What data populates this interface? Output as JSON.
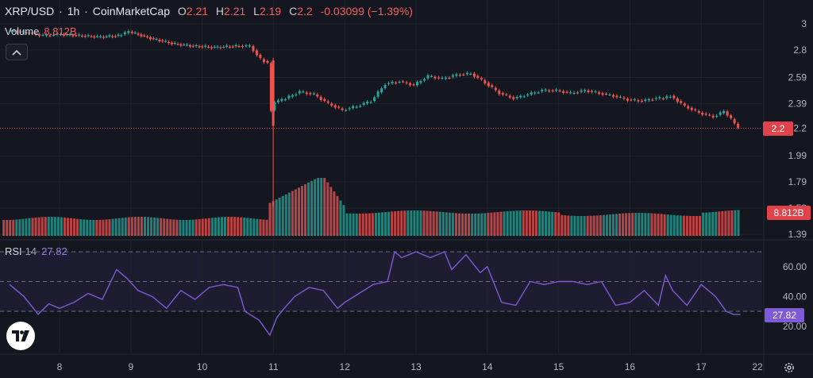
{
  "header": {
    "symbol": "XRP/USD",
    "interval": "1h",
    "source": "CoinMarketCap",
    "open_key": "O",
    "open": "2.21",
    "high_key": "H",
    "high": "2.21",
    "low_key": "L",
    "low": "2.19",
    "close_key": "C",
    "close": "2.2",
    "change": "-0.03099 (−1.39%)"
  },
  "volume": {
    "label": "Volume",
    "value": "8.812B"
  },
  "rsi": {
    "label": "RSI",
    "length": "14",
    "value": "27.82"
  },
  "colors": {
    "up": "#26a69a",
    "down": "#ef5350",
    "rsi": "#7e5bd6",
    "last_price": "#e0434b"
  },
  "chart_data": [
    {
      "type": "candlestick",
      "title": "XRP/USD · 1h · CoinMarketCap",
      "x_ticks": [
        "8",
        "9",
        "10",
        "11",
        "12",
        "13",
        "14",
        "15",
        "16",
        "17",
        "22"
      ],
      "y_ticks": [
        "3",
        "2.8",
        "2.59",
        "2.39",
        "2.2",
        "1.99",
        "1.79",
        "1.59",
        "1.39"
      ],
      "y_range": [
        1.39,
        3.0
      ],
      "last_price": "2.2",
      "series": [
        {
          "name": "close",
          "x": [
            7.3,
            7.6,
            7.8,
            8.0,
            8.3,
            8.6,
            8.85,
            9.0,
            9.3,
            9.6,
            9.9,
            10.2,
            10.5,
            10.7,
            10.85,
            10.95,
            11.0,
            11.05,
            11.2,
            11.4,
            11.6,
            11.8,
            12.0,
            12.2,
            12.4,
            12.6,
            12.8,
            13.0,
            13.2,
            13.4,
            13.6,
            13.8,
            14.0,
            14.2,
            14.4,
            14.6,
            14.8,
            15.0,
            15.2,
            15.4,
            15.6,
            15.8,
            16.0,
            16.2,
            16.4,
            16.5,
            16.6,
            16.8,
            17.0,
            17.2,
            17.35,
            17.45,
            17.55
          ],
          "y": [
            2.95,
            2.93,
            2.91,
            2.92,
            2.91,
            2.9,
            2.91,
            2.94,
            2.89,
            2.85,
            2.83,
            2.82,
            2.83,
            2.83,
            2.73,
            2.7,
            2.34,
            2.4,
            2.43,
            2.48,
            2.46,
            2.39,
            2.34,
            2.37,
            2.41,
            2.54,
            2.56,
            2.53,
            2.6,
            2.58,
            2.61,
            2.62,
            2.55,
            2.47,
            2.43,
            2.46,
            2.49,
            2.49,
            2.47,
            2.49,
            2.47,
            2.45,
            2.42,
            2.41,
            2.43,
            2.43,
            2.45,
            2.37,
            2.32,
            2.29,
            2.33,
            2.27,
            2.2
          ]
        }
      ]
    },
    {
      "type": "bar",
      "title": "Volume",
      "last_value": "8.812B",
      "trend": "flat before day 11, spike and decay after day 11"
    },
    {
      "type": "line",
      "title": "RSI 14",
      "y_ticks": [
        "60.00",
        "40.00",
        "20.00"
      ],
      "y_range": [
        10,
        75
      ],
      "bands": [
        30,
        50,
        70
      ],
      "last_value": "27.82",
      "series": [
        {
          "name": "RSI",
          "x": [
            7.3,
            7.5,
            7.7,
            7.85,
            8.0,
            8.2,
            8.4,
            8.6,
            8.8,
            8.95,
            9.1,
            9.3,
            9.5,
            9.7,
            9.9,
            10.1,
            10.3,
            10.5,
            10.6,
            10.8,
            10.95,
            11.05,
            11.15,
            11.3,
            11.5,
            11.7,
            11.9,
            12.0,
            12.2,
            12.4,
            12.6,
            12.7,
            12.8,
            13.0,
            13.2,
            13.4,
            13.5,
            13.7,
            13.9,
            14.0,
            14.2,
            14.4,
            14.6,
            14.8,
            15.0,
            15.2,
            15.4,
            15.6,
            15.8,
            16.0,
            16.2,
            16.4,
            16.5,
            16.6,
            16.8,
            17.0,
            17.2,
            17.35,
            17.45,
            17.55
          ],
          "y": [
            48,
            40,
            28,
            35,
            32,
            36,
            42,
            38,
            58,
            52,
            44,
            40,
            32,
            44,
            38,
            46,
            48,
            46,
            30,
            24,
            14,
            26,
            32,
            40,
            46,
            44,
            32,
            36,
            42,
            48,
            50,
            70,
            66,
            70,
            66,
            70,
            58,
            68,
            56,
            60,
            36,
            34,
            50,
            48,
            50,
            50,
            48,
            50,
            34,
            36,
            44,
            34,
            54,
            44,
            34,
            48,
            40,
            30,
            28,
            27.82
          ]
        }
      ]
    }
  ]
}
